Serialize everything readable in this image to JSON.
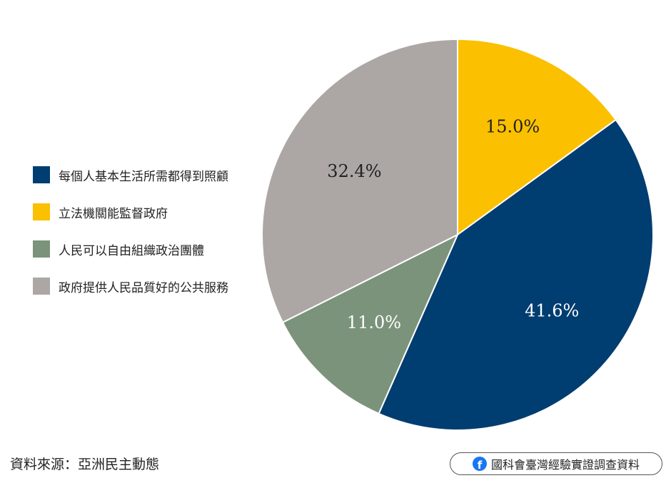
{
  "chart_data": {
    "type": "pie",
    "title": "",
    "categories": [
      "每個人基本生活所需都得到照顧",
      "立法機關能監督政府",
      "人民可以自由組織政治團體",
      "政府提供人民品質好的公共服務"
    ],
    "values": [
      41.6,
      15.0,
      11.0,
      32.4
    ],
    "labels": [
      "41.6%",
      "15.0%",
      "11.0%",
      "32.4%"
    ],
    "colors": [
      "#003d70",
      "#fbc000",
      "#7b937a",
      "#aca7a5"
    ],
    "label_colors": [
      "#ffffff",
      "#222222",
      "#ffffff",
      "#222222"
    ],
    "legend_position": "left",
    "start": "12 o'clock",
    "direction": "clockwise",
    "slice_order": [
      1,
      0,
      2,
      3
    ]
  },
  "source": "資料來源：亞洲民主動態",
  "badge": {
    "icon": "facebook-icon",
    "icon_glyph": "f",
    "text": "國科會臺灣經驗實證調查資料",
    "icon_color": "#1877f2"
  }
}
